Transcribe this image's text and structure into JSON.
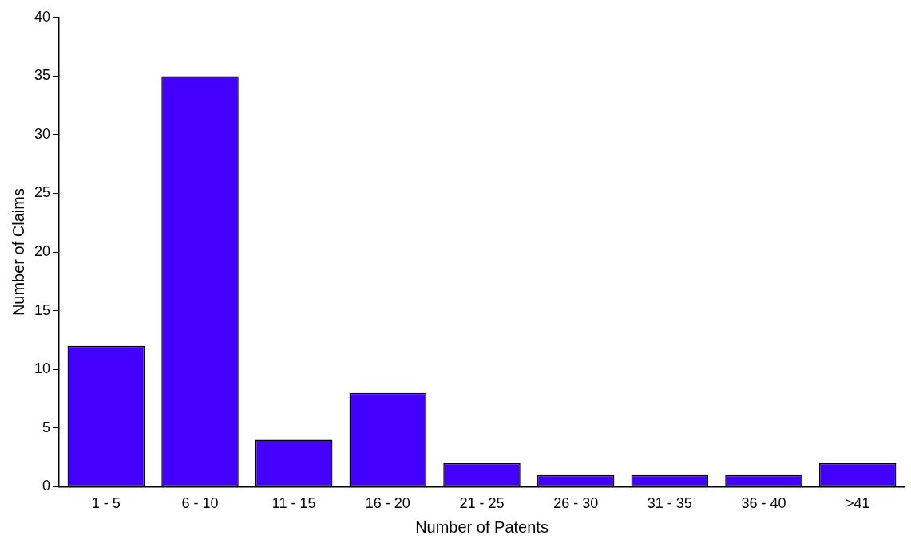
{
  "chart_data": {
    "type": "bar",
    "xlabel": "Number of Patents",
    "ylabel": "Number of Claims",
    "categories": [
      "1 - 5",
      "6 - 10",
      "11 - 15",
      "16 - 20",
      "21 - 25",
      "26 - 30",
      "31 - 35",
      "36 - 40",
      ">41"
    ],
    "values": [
      12,
      35,
      4,
      8,
      2,
      1,
      1,
      1,
      2
    ],
    "color": "#4400ff",
    "ylim": [
      0,
      40
    ],
    "yticks": [
      0,
      5,
      10,
      15,
      20,
      25,
      30,
      35,
      40
    ],
    "grid": false,
    "legend": false
  }
}
